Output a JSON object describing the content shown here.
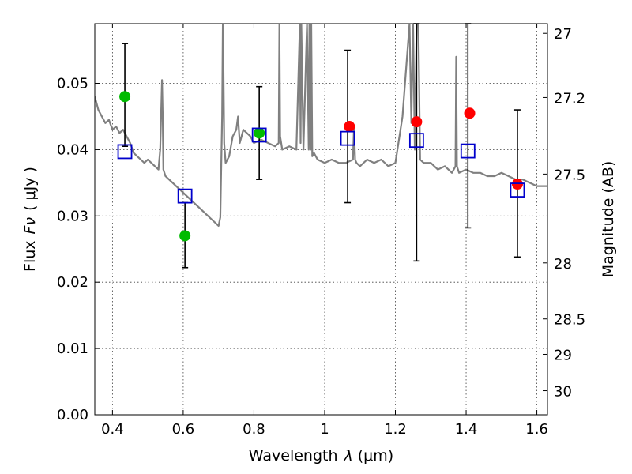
{
  "chart_data": {
    "type": "scatter",
    "title": "",
    "xlabel": "Wavelength",
    "xlabel_symbol": "λ",
    "xlabel_unit": "(μm)",
    "ylabel": "Flux",
    "ylabel_symbol": "Fν",
    "ylabel_unit": "( μJy )",
    "y2label": "Magnitude (AB)",
    "xlim": [
      0.35,
      1.63
    ],
    "ylim": [
      0.0,
      0.059
    ],
    "grid": true,
    "x_ticks": [
      "0.4",
      "0.6",
      "0.8",
      "1",
      "1.2",
      "1.4",
      "1.6"
    ],
    "x_tick_values": [
      0.4,
      0.6,
      0.8,
      1.0,
      1.2,
      1.4,
      1.6
    ],
    "y_ticks": [
      "0.00",
      "0.01",
      "0.02",
      "0.03",
      "0.04",
      "0.05"
    ],
    "y_tick_values": [
      0.0,
      0.01,
      0.02,
      0.03,
      0.04,
      0.05
    ],
    "y2_ticks": [
      "27",
      "27.2",
      "27.5",
      "28",
      "28.5",
      "29",
      "30"
    ],
    "y2_tick_values": [
      27.0,
      27.2,
      27.5,
      28.0,
      28.5,
      29.0,
      30.0
    ],
    "series": [
      {
        "kind": "line",
        "color": "#808080",
        "x": [
          0.35,
          0.36,
          0.37,
          0.38,
          0.39,
          0.4,
          0.41,
          0.42,
          0.43,
          0.44,
          0.45,
          0.46,
          0.47,
          0.48,
          0.49,
          0.5,
          0.51,
          0.52,
          0.53,
          0.535,
          0.54,
          0.542,
          0.544,
          0.55,
          0.56,
          0.58,
          0.6,
          0.62,
          0.64,
          0.66,
          0.68,
          0.7,
          0.705,
          0.71,
          0.712,
          0.714,
          0.716,
          0.72,
          0.73,
          0.74,
          0.75,
          0.755,
          0.76,
          0.765,
          0.77,
          0.78,
          0.79,
          0.8,
          0.82,
          0.84,
          0.86,
          0.87,
          0.872,
          0.874,
          0.88,
          0.9,
          0.92,
          0.93,
          0.932,
          0.934,
          0.94,
          0.95,
          0.955,
          0.957,
          0.96,
          0.962,
          0.965,
          0.97,
          0.98,
          1.0,
          1.02,
          1.04,
          1.06,
          1.08,
          1.083,
          1.086,
          1.09,
          1.1,
          1.12,
          1.14,
          1.16,
          1.18,
          1.2,
          1.22,
          1.24,
          1.245,
          1.25,
          1.255,
          1.26,
          1.265,
          1.27,
          1.28,
          1.3,
          1.32,
          1.34,
          1.36,
          1.37,
          1.372,
          1.374,
          1.38,
          1.4,
          1.42,
          1.44,
          1.46,
          1.48,
          1.5,
          1.52,
          1.54,
          1.56,
          1.58,
          1.6,
          1.63
        ],
        "y": [
          0.048,
          0.046,
          0.045,
          0.044,
          0.0445,
          0.043,
          0.0435,
          0.0425,
          0.043,
          0.042,
          0.041,
          0.0395,
          0.039,
          0.0385,
          0.038,
          0.0385,
          0.038,
          0.0375,
          0.037,
          0.04,
          0.0505,
          0.045,
          0.037,
          0.036,
          0.0355,
          0.0345,
          0.0335,
          0.0325,
          0.0315,
          0.0305,
          0.0295,
          0.0285,
          0.0298,
          0.045,
          0.059,
          0.052,
          0.041,
          0.038,
          0.039,
          0.042,
          0.043,
          0.045,
          0.041,
          0.042,
          0.043,
          0.0425,
          0.042,
          0.041,
          0.0415,
          0.041,
          0.0405,
          0.041,
          0.059,
          0.042,
          0.04,
          0.0405,
          0.04,
          0.059,
          0.041,
          0.059,
          0.04,
          0.059,
          0.04,
          0.059,
          0.04,
          0.059,
          0.039,
          0.0395,
          0.0385,
          0.038,
          0.0385,
          0.038,
          0.038,
          0.0385,
          0.0435,
          0.0385,
          0.038,
          0.0375,
          0.0385,
          0.038,
          0.0385,
          0.0375,
          0.038,
          0.045,
          0.059,
          0.044,
          0.059,
          0.04,
          0.059,
          0.059,
          0.0385,
          0.038,
          0.038,
          0.037,
          0.0375,
          0.0365,
          0.0375,
          0.054,
          0.0375,
          0.0365,
          0.037,
          0.0365,
          0.0365,
          0.036,
          0.036,
          0.0365,
          0.036,
          0.0355,
          0.0355,
          0.035,
          0.0345,
          0.0345
        ]
      },
      {
        "kind": "points",
        "marker": "circle",
        "color": "#00bb00",
        "x": [
          0.435,
          0.605,
          0.815
        ],
        "y": [
          0.048,
          0.027,
          0.0425
        ]
      },
      {
        "kind": "points",
        "marker": "circle",
        "color": "#ff0000",
        "x": [
          1.07,
          1.26,
          1.41,
          1.545
        ],
        "y": [
          0.0435,
          0.0442,
          0.0455,
          0.0348
        ]
      },
      {
        "kind": "points",
        "marker": "square",
        "color": "#0000cc",
        "x": [
          0.435,
          0.605,
          0.815,
          1.065,
          1.26,
          1.405,
          1.545
        ],
        "y": [
          0.0397,
          0.033,
          0.0422,
          0.0417,
          0.0414,
          0.0398,
          0.0339
        ]
      },
      {
        "kind": "errorbars",
        "color": "#000000",
        "x": [
          0.435,
          0.605,
          0.815,
          1.065,
          1.26,
          1.405,
          1.545
        ],
        "low": [
          0.0405,
          0.0222,
          0.0355,
          0.032,
          0.0232,
          0.0282,
          0.0238
        ],
        "high": [
          0.056,
          0.032,
          0.0495,
          0.055,
          0.059,
          0.059,
          0.046
        ]
      }
    ]
  }
}
